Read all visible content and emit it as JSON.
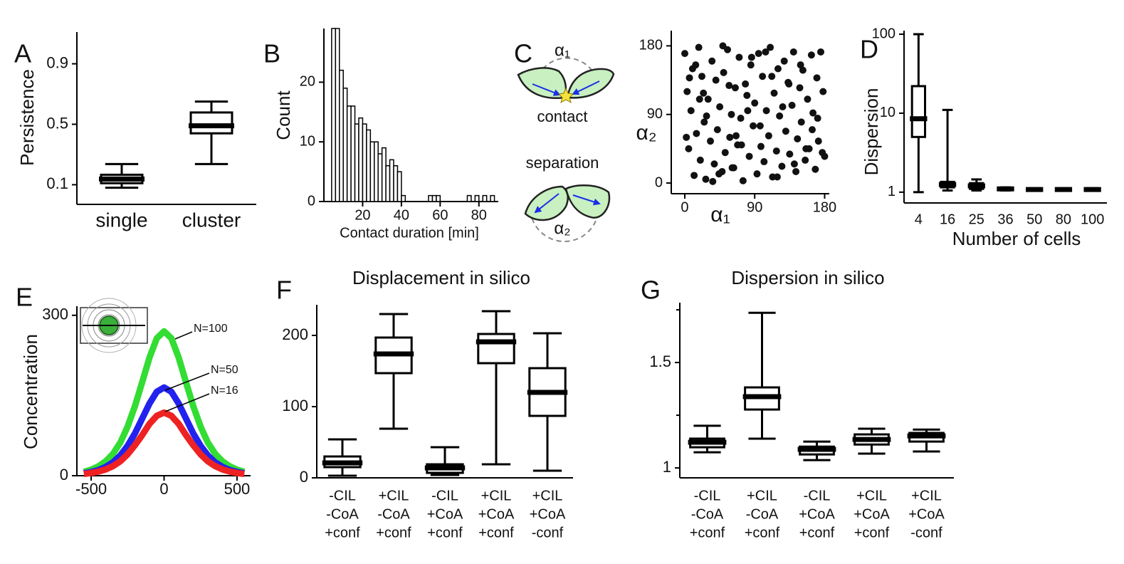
{
  "chart_data": [
    {
      "panel": "A",
      "type": "box",
      "y_label": "Persistence",
      "categories": [
        "single",
        "cluster"
      ],
      "boxes": [
        {
          "whislo": 0.08,
          "q1": 0.11,
          "med": 0.138,
          "q3": 0.166,
          "whishi": 0.237
        },
        {
          "whislo": 0.237,
          "q1": 0.44,
          "med": 0.49,
          "q3": 0.578,
          "whishi": 0.65
        }
      ],
      "ylim": [
        -0.03,
        1.11
      ],
      "yticks": [
        0.1,
        0.5,
        0.9
      ]
    },
    {
      "panel": "B",
      "type": "histogram",
      "y_label": "Count",
      "x_label": "Contact duration [min]",
      "bins": [
        4,
        6,
        8,
        10,
        12,
        14,
        16,
        18,
        20,
        22,
        24,
        26,
        28,
        30,
        32,
        34,
        36,
        38,
        40,
        42,
        44,
        46,
        48,
        50,
        52,
        54,
        56,
        58,
        60,
        62,
        64,
        66,
        68,
        70,
        72,
        74,
        76,
        78,
        80,
        82,
        84,
        86,
        88
      ],
      "counts": [
        29,
        29,
        22,
        19,
        16,
        16,
        13,
        14,
        13,
        12,
        10,
        10,
        8,
        9,
        6,
        7,
        6,
        5,
        1,
        0,
        0,
        0,
        0,
        0,
        0,
        1,
        1,
        1,
        0,
        0,
        0,
        0,
        0,
        0,
        0,
        1,
        0,
        1,
        0,
        1,
        0,
        1
      ],
      "color": "#ffffff",
      "xlim": [
        0,
        90
      ],
      "xticks": [
        20,
        40,
        60,
        80
      ],
      "ylim": [
        0,
        29
      ],
      "yticks": [
        0,
        10,
        20
      ]
    },
    {
      "panel": "C",
      "type": "scatter",
      "y_label": "α₂",
      "x_label": "α₁",
      "diagram": {
        "top_angle": "α₁",
        "contact": "contact",
        "separation": "separation",
        "bottom_angle": "α₂"
      },
      "color": "#111111",
      "x": [
        0,
        3,
        5,
        8,
        10,
        12,
        15,
        18,
        20,
        22,
        25,
        27,
        30,
        33,
        35,
        38,
        40,
        42,
        45,
        48,
        50,
        52,
        55,
        58,
        60,
        63,
        65,
        68,
        70,
        72,
        75,
        78,
        80,
        83,
        85,
        88,
        90,
        93,
        95,
        98,
        100,
        102,
        105,
        108,
        110,
        113,
        115,
        118,
        120,
        122,
        125,
        128,
        130,
        133,
        135,
        138,
        140,
        143,
        145,
        148,
        150,
        152,
        155,
        158,
        160,
        163,
        165,
        168,
        170,
        172,
        175,
        178,
        180,
        2,
        14,
        28,
        44,
        57,
        73,
        86,
        97,
        112,
        126,
        141,
        156,
        171,
        6,
        19,
        36,
        49,
        66,
        81,
        104,
        119,
        134,
        149,
        164,
        177,
        24,
        61
      ],
      "y": [
        170,
        120,
        45,
        95,
        150,
        10,
        65,
        178,
        30,
        140,
        80,
        5,
        110,
        55,
        160,
        25,
        135,
        70,
        100,
        15,
        145,
        40,
        175,
        60,
        90,
        20,
        125,
        50,
        165,
        85,
        3,
        130,
        115,
        35,
        155,
        75,
        105,
        12,
        170,
        48,
        140,
        28,
        95,
        62,
        178,
        8,
        118,
        42,
        150,
        88,
        22,
        160,
        68,
        132,
        38,
        102,
        172,
        15,
        58,
        125,
        80,
        148,
        30,
        110,
        45,
        168,
        92,
        18,
        138,
        55,
        172,
        120,
        35,
        60,
        155,
        88,
        12,
        128,
        50,
        165,
        75,
        140,
        100,
        25,
        45,
        85,
        138,
        110,
        2,
        180,
        62,
        95,
        172,
        8,
        130,
        155,
        70,
        40,
        118,
        20
      ],
      "xlim": [
        -17.4,
        186
      ],
      "xticks": [
        0,
        90,
        180
      ],
      "ylim": [
        -14,
        200
      ],
      "yticks": [
        0,
        90,
        180
      ]
    },
    {
      "panel": "D",
      "type": "box",
      "y_label": "Dispersion",
      "x_label": "Number of cells",
      "ylog": true,
      "categories": [
        "4",
        "16",
        "25",
        "36",
        "50",
        "80",
        "100"
      ],
      "boxes": [
        {
          "whislo": 1,
          "q1": 5,
          "med": 8.5,
          "q3": 22,
          "whishi": 100
        },
        {
          "whislo": 1.05,
          "q1": 1.15,
          "med": 1.25,
          "q3": 1.35,
          "whishi": 11
        },
        {
          "whislo": 1.05,
          "q1": 1.1,
          "med": 1.2,
          "q3": 1.3,
          "whishi": 1.45
        },
        {
          "whislo": 1.05,
          "q1": 1.08,
          "med": 1.1,
          "q3": 1.13,
          "whishi": 1.15
        },
        {
          "whislo": 1.04,
          "q1": 1.06,
          "med": 1.08,
          "q3": 1.1,
          "whishi": 1.12
        },
        {
          "whislo": 1.04,
          "q1": 1.06,
          "med": 1.08,
          "q3": 1.1,
          "whishi": 1.12
        },
        {
          "whislo": 1.04,
          "q1": 1.06,
          "med": 1.08,
          "q3": 1.1,
          "whishi": 1.12
        }
      ],
      "ylim": [
        0.73,
        111
      ],
      "yticks": [
        1,
        10,
        100
      ]
    },
    {
      "panel": "E",
      "type": "line",
      "y_label": "Concentration",
      "x": [
        -550,
        -500,
        -450,
        -400,
        -350,
        -300,
        -250,
        -200,
        -150,
        -100,
        -50,
        0,
        50,
        100,
        150,
        200,
        250,
        300,
        350,
        400,
        450,
        500,
        550
      ],
      "series": [
        {
          "name": "N=100",
          "color": "#33dd33",
          "values": [
            7.3,
            11.3,
            17.6,
            27,
            41,
            62,
            92,
            130,
            175,
            221,
            257,
            270,
            257,
            221,
            175,
            130,
            92,
            62,
            41,
            27,
            17.6,
            11.3,
            7.3
          ]
        },
        {
          "name": "N=50",
          "color": "#2222ee",
          "values": [
            4.5,
            6.9,
            10.7,
            16.5,
            25,
            38,
            56,
            79,
            107,
            135,
            157,
            165,
            157,
            135,
            107,
            79,
            56,
            38,
            25,
            16.5,
            10.7,
            6.9,
            4.5
          ]
        },
        {
          "name": "N=16",
          "color": "#ee2222",
          "values": [
            3.2,
            5,
            7.7,
            11.8,
            18,
            27,
            40,
            57,
            76,
            97,
            112,
            118,
            112,
            97,
            76,
            57,
            40,
            27,
            18,
            11.8,
            7.7,
            5,
            3.2
          ]
        }
      ],
      "xlim": [
        -598,
        593
      ],
      "xticks": [
        -500,
        0,
        500
      ],
      "ylim": [
        0,
        317
      ],
      "yticks": [
        0,
        300
      ]
    },
    {
      "panel": "F",
      "type": "box",
      "title": "Displacement in silico",
      "categories": [
        [
          "-CIL",
          "-CoA",
          "+conf"
        ],
        [
          "+CIL",
          "-CoA",
          "+conf"
        ],
        [
          "-CIL",
          "+CoA",
          "+conf"
        ],
        [
          "+CIL",
          "+CoA",
          "+conf"
        ],
        [
          "+CIL",
          "+CoA",
          "-conf"
        ]
      ],
      "boxes": [
        {
          "whislo": 3,
          "q1": 15,
          "med": 21,
          "q3": 30,
          "whishi": 54
        },
        {
          "whislo": 69,
          "q1": 147,
          "med": 174,
          "q3": 197,
          "whishi": 230
        },
        {
          "whislo": 4,
          "q1": 7,
          "med": 14,
          "q3": 19,
          "whishi": 43
        },
        {
          "whislo": 19,
          "q1": 161,
          "med": 191,
          "q3": 202,
          "whishi": 234
        },
        {
          "whislo": 10,
          "q1": 87,
          "med": 120,
          "q3": 154,
          "whishi": 203
        }
      ],
      "ylim": [
        0,
        243
      ],
      "yticks": [
        0,
        100,
        200
      ]
    },
    {
      "panel": "G",
      "type": "box",
      "title": "Dispersion in silico",
      "categories": [
        [
          "-CIL",
          "-CoA",
          "+conf"
        ],
        [
          "+CIL",
          "-CoA",
          "+conf"
        ],
        [
          "-CIL",
          "+CoA",
          "+conf"
        ],
        [
          "+CIL",
          "+CoA",
          "+conf"
        ],
        [
          "+CIL",
          "+CoA",
          "-conf"
        ]
      ],
      "boxes": [
        {
          "whislo": 1.074,
          "q1": 1.098,
          "med": 1.122,
          "q3": 1.139,
          "whishi": 1.2
        },
        {
          "whislo": 1.139,
          "q1": 1.277,
          "med": 1.338,
          "q3": 1.382,
          "whishi": 1.736
        },
        {
          "whislo": 1.037,
          "q1": 1.064,
          "med": 1.088,
          "q3": 1.101,
          "whishi": 1.125
        },
        {
          "whislo": 1.068,
          "q1": 1.111,
          "med": 1.135,
          "q3": 1.159,
          "whishi": 1.186
        },
        {
          "whislo": 1.078,
          "q1": 1.125,
          "med": 1.152,
          "q3": 1.166,
          "whishi": 1.182
        }
      ],
      "ylim": [
        0.953,
        1.784
      ],
      "yticks": [
        1,
        1.5
      ],
      "yminorticks": [
        1.25,
        1.75
      ]
    }
  ]
}
